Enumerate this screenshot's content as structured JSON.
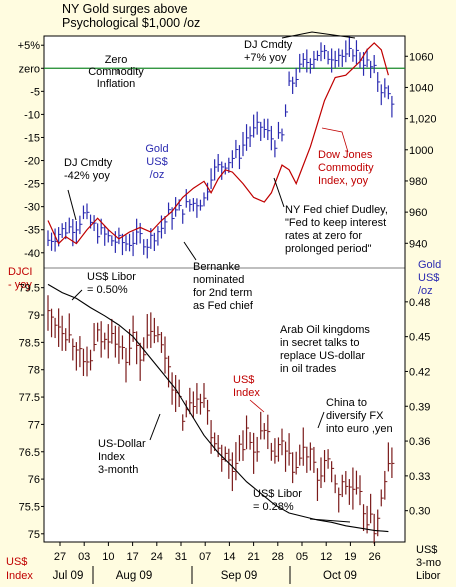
{
  "chart_data": {
    "type": "bar",
    "title": "NY Gold surges above\nPsychological $1,000 /oz",
    "x": {
      "ticks": [
        "27",
        "03",
        "10",
        "17",
        "24",
        "31",
        "07",
        "14",
        "21",
        "28",
        "05",
        "12",
        "19",
        "26"
      ],
      "months": [
        "Jul 09",
        "Aug 09",
        "Sep 09",
        "Oct 09"
      ],
      "n_days": 100,
      "month_breaks": [
        5,
        26,
        47,
        69
      ]
    },
    "top_panel": {
      "left_axis": {
        "label": "DJCI\n- yoy",
        "ticks": [
          "+5%",
          "zero",
          "-5",
          "-10",
          "-15",
          "-20",
          "-25",
          "-30",
          "-35",
          "-40"
        ],
        "range": [
          -42,
          7
        ]
      },
      "right_axis": {
        "label": "Gold\nUS$\n/oz",
        "ticks": [
          "1060",
          "1040",
          "1,020",
          "1000",
          "980",
          "960",
          "940"
        ],
        "range": [
          928,
          1073
        ]
      },
      "zero_line_label": "Zero\nCommodity\nInflation",
      "gold_label": "Gold\nUS$\n/oz",
      "djci_label": "Dow Jones\nCommodity\nIndex, yoy",
      "annotations": {
        "dj_low": "DJ Cmdty\n-42% yoy",
        "dj_high": "DJ Cmdty\n+7% yoy",
        "fed": "NY Fed chief Dudley,\n\"Fed to keep interest\nrates at zero for\nprolonged period\"",
        "bernanke": "Bernanke\nnominated\nfor 2nd term\nas Fed chief"
      },
      "gold_knots": [
        [
          0,
          942
        ],
        [
          4,
          948
        ],
        [
          8,
          952
        ],
        [
          10,
          958
        ],
        [
          14,
          948
        ],
        [
          18,
          942
        ],
        [
          22,
          940
        ],
        [
          26,
          944
        ],
        [
          28,
          940
        ],
        [
          30,
          946
        ],
        [
          32,
          950
        ],
        [
          34,
          958
        ],
        [
          36,
          960
        ],
        [
          40,
          965
        ],
        [
          44,
          968
        ],
        [
          46,
          985
        ],
        [
          50,
          992
        ],
        [
          54,
          998
        ],
        [
          56,
          1008
        ],
        [
          60,
          1015
        ],
        [
          62,
          1010
        ],
        [
          64,
          1005
        ],
        [
          66,
          1008
        ],
        [
          68,
          1040
        ],
        [
          72,
          1055
        ],
        [
          76,
          1062
        ],
        [
          78,
          1060
        ],
        [
          82,
          1062
        ],
        [
          84,
          1058
        ],
        [
          86,
          1064
        ],
        [
          90,
          1055
        ],
        [
          92,
          1050
        ],
        [
          94,
          1040
        ],
        [
          96,
          1035
        ],
        [
          98,
          1030
        ]
      ],
      "djci_knots": [
        [
          0,
          -33
        ],
        [
          3,
          -38
        ],
        [
          5,
          -36.5
        ],
        [
          8,
          -38
        ],
        [
          11,
          -35
        ],
        [
          14,
          -32.5
        ],
        [
          17,
          -35
        ],
        [
          20,
          -37
        ],
        [
          23,
          -35.5
        ],
        [
          26,
          -34.5
        ],
        [
          29,
          -35.5
        ],
        [
          32,
          -33
        ],
        [
          35,
          -31
        ],
        [
          38,
          -28
        ],
        [
          41,
          -26
        ],
        [
          44,
          -24.5
        ],
        [
          46,
          -27
        ],
        [
          48,
          -24
        ],
        [
          50,
          -22
        ],
        [
          52,
          -22.5
        ],
        [
          55,
          -25
        ],
        [
          58,
          -28
        ],
        [
          61,
          -29
        ],
        [
          63,
          -27
        ],
        [
          66,
          -21
        ],
        [
          68,
          -22
        ],
        [
          70,
          -25
        ],
        [
          72,
          -21
        ],
        [
          74,
          -17
        ],
        [
          76,
          -12
        ],
        [
          78,
          -7
        ],
        [
          81,
          -2
        ],
        [
          84,
          -1.5
        ],
        [
          86,
          0
        ],
        [
          88,
          1.5
        ],
        [
          90,
          4
        ],
        [
          92,
          5.5
        ],
        [
          94,
          4
        ],
        [
          96,
          -1.5
        ]
      ]
    },
    "bottom_panel": {
      "left_axis": {
        "label": "US$\nIndex",
        "ticks": [
          "79.5",
          "79",
          "78.5",
          "78",
          "77.5",
          "77",
          "76.5",
          "76",
          "75.5",
          "75"
        ],
        "range": [
          74.85,
          79.75
        ]
      },
      "right_axis": {
        "label": "US$\n3-mo\nLibor",
        "ticks": [
          "0.48",
          "0.45",
          "0.42",
          "0.39",
          "0.36",
          "0.33",
          "0.30"
        ],
        "range": [
          0.273,
          0.504
        ]
      },
      "annotations": {
        "libor_start": "US$ Libor\n= 0.50%",
        "libor_end": "US$ Libor\n= 0.28%",
        "dollar_index": "US-Dollar\nIndex\n3-month",
        "usd_index": "US$\nIndex",
        "arab": "Arab Oil kingdoms\nin secret talks to\nreplace US-dollar\nin oil trades",
        "china": "China to\ndiversify FX\ninto euro ,yen"
      },
      "usd_knots": [
        [
          0,
          79
        ],
        [
          4,
          78.8
        ],
        [
          6,
          78.6
        ],
        [
          8,
          78.5
        ],
        [
          10,
          78
        ],
        [
          12,
          78.2
        ],
        [
          14,
          78.6
        ],
        [
          16,
          78.5
        ],
        [
          18,
          78.8
        ],
        [
          20,
          78.4
        ],
        [
          22,
          78.2
        ],
        [
          24,
          78.6
        ],
        [
          26,
          78.3
        ],
        [
          28,
          78.5
        ],
        [
          30,
          78.7
        ],
        [
          32,
          78.4
        ],
        [
          34,
          78.1
        ],
        [
          36,
          77.5
        ],
        [
          38,
          77.2
        ],
        [
          40,
          77.3
        ],
        [
          42,
          77.6
        ],
        [
          44,
          77.5
        ],
        [
          46,
          76.9
        ],
        [
          48,
          76.6
        ],
        [
          50,
          76.4
        ],
        [
          52,
          76.2
        ],
        [
          54,
          76.6
        ],
        [
          56,
          76.8
        ],
        [
          58,
          76.5
        ],
        [
          60,
          76.8
        ],
        [
          62,
          76.7
        ],
        [
          64,
          76.4
        ],
        [
          66,
          76.6
        ],
        [
          68,
          76.3
        ],
        [
          70,
          76.2
        ],
        [
          72,
          76.5
        ],
        [
          74,
          76.4
        ],
        [
          76,
          76.0
        ],
        [
          78,
          76.3
        ],
        [
          80,
          76.1
        ],
        [
          82,
          75.8
        ],
        [
          84,
          75.9
        ],
        [
          86,
          75.8
        ],
        [
          88,
          75.6
        ],
        [
          90,
          75.3
        ],
        [
          92,
          75.1
        ],
        [
          94,
          75.6
        ],
        [
          96,
          76.2
        ],
        [
          98,
          76.5
        ]
      ],
      "libor_knots": [
        [
          0,
          0.495
        ],
        [
          4,
          0.488
        ],
        [
          8,
          0.483
        ],
        [
          12,
          0.475
        ],
        [
          16,
          0.468
        ],
        [
          20,
          0.46
        ],
        [
          24,
          0.45
        ],
        [
          28,
          0.435
        ],
        [
          32,
          0.42
        ],
        [
          36,
          0.405
        ],
        [
          40,
          0.385
        ],
        [
          44,
          0.365
        ],
        [
          48,
          0.35
        ],
        [
          52,
          0.338
        ],
        [
          56,
          0.325
        ],
        [
          60,
          0.315
        ],
        [
          64,
          0.305
        ],
        [
          68,
          0.298
        ],
        [
          72,
          0.295
        ],
        [
          76,
          0.292
        ],
        [
          80,
          0.29
        ],
        [
          84,
          0.287
        ],
        [
          88,
          0.285
        ],
        [
          92,
          0.283
        ],
        [
          96,
          0.282
        ]
      ]
    }
  }
}
